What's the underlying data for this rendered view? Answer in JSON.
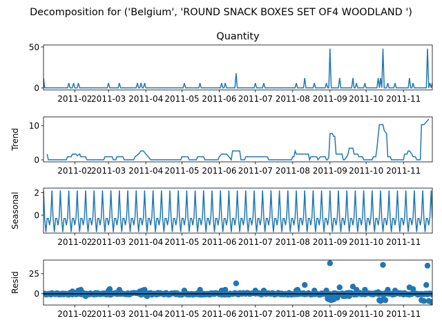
{
  "figure": {
    "suptitle": "Decomposition for ('Belgium', 'ROUND SNACK BOXES SET OF4 WOODLAND ')",
    "line_color": "#1f77b4"
  },
  "chart_data": [
    {
      "type": "line",
      "panel": "observed",
      "title": "Quantity",
      "ylabel": "",
      "x_range": [
        "2011-01-06",
        "2011-11-25"
      ],
      "ylim": [
        -2.5,
        52.5
      ],
      "yticks": [
        0,
        50
      ],
      "xtick_labels": [
        "2011-02",
        "2011-03",
        "2011-04",
        "2011-05",
        "2011-06",
        "2011-07",
        "2011-08",
        "2011-09",
        "2011-10",
        "2011-11"
      ],
      "xtick_dates": [
        "2011-02-01",
        "2011-03-01",
        "2011-04-01",
        "2011-05-01",
        "2011-06-01",
        "2011-07-01",
        "2011-08-01",
        "2011-09-01",
        "2011-10-01",
        "2011-11-01"
      ],
      "baseline": 0,
      "spikes": [
        [
          "2011-01-06",
          12
        ],
        [
          "2011-01-27",
          6
        ],
        [
          "2011-01-31",
          6
        ],
        [
          "2011-02-04",
          6
        ],
        [
          "2011-03-01",
          6
        ],
        [
          "2011-03-10",
          6
        ],
        [
          "2011-03-25",
          6
        ],
        [
          "2011-03-28",
          6
        ],
        [
          "2011-03-31",
          6
        ],
        [
          "2011-05-03",
          6
        ],
        [
          "2011-05-16",
          6
        ],
        [
          "2011-06-03",
          6
        ],
        [
          "2011-06-06",
          6
        ],
        [
          "2011-06-15",
          18
        ],
        [
          "2011-07-01",
          6
        ],
        [
          "2011-07-08",
          6
        ],
        [
          "2011-08-04",
          6
        ],
        [
          "2011-08-11",
          12
        ],
        [
          "2011-08-19",
          6
        ],
        [
          "2011-08-29",
          6
        ],
        [
          "2011-09-01",
          48
        ],
        [
          "2011-09-09",
          12
        ],
        [
          "2011-09-20",
          12
        ],
        [
          "2011-09-23",
          6
        ],
        [
          "2011-09-30",
          6
        ],
        [
          "2011-10-11",
          12
        ],
        [
          "2011-10-13",
          12
        ],
        [
          "2011-10-15",
          48
        ],
        [
          "2011-10-19",
          6
        ],
        [
          "2011-10-25",
          6
        ],
        [
          "2011-11-06",
          12
        ],
        [
          "2011-11-09",
          6
        ],
        [
          "2011-11-21",
          48
        ],
        [
          "2011-11-23",
          6
        ],
        [
          "2011-11-25",
          6
        ]
      ]
    },
    {
      "type": "line",
      "panel": "trend",
      "title": "",
      "ylabel": "Trend",
      "x_range": [
        "2011-01-06",
        "2011-11-25"
      ],
      "ylim": [
        -0.6,
        12.6
      ],
      "yticks": [
        0,
        10
      ],
      "xtick_labels": [
        "2011-02",
        "2011-03",
        "2011-04",
        "2011-05",
        "2011-06",
        "2011-07",
        "2011-08",
        "2011-09",
        "2011-10",
        "2011-11"
      ],
      "xtick_dates": [
        "2011-02-01",
        "2011-03-01",
        "2011-04-01",
        "2011-05-01",
        "2011-06-01",
        "2011-07-01",
        "2011-08-01",
        "2011-09-01",
        "2011-10-01",
        "2011-11-01"
      ],
      "points": [
        [
          "2011-01-09",
          1.7
        ],
        [
          "2011-01-10",
          0
        ],
        [
          "2011-01-25",
          0
        ],
        [
          "2011-01-26",
          0.9
        ],
        [
          "2011-01-29",
          0.9
        ],
        [
          "2011-01-30",
          1.7
        ],
        [
          "2011-02-02",
          1.7
        ],
        [
          "2011-02-03",
          1.2
        ],
        [
          "2011-02-05",
          1.7
        ],
        [
          "2011-02-06",
          0.9
        ],
        [
          "2011-02-10",
          0.9
        ],
        [
          "2011-02-11",
          0
        ],
        [
          "2011-02-25",
          0
        ],
        [
          "2011-02-26",
          0.9
        ],
        [
          "2011-03-04",
          0.9
        ],
        [
          "2011-03-05",
          0
        ],
        [
          "2011-03-07",
          0
        ],
        [
          "2011-03-08",
          0.9
        ],
        [
          "2011-03-13",
          0.9
        ],
        [
          "2011-03-14",
          0
        ],
        [
          "2011-03-22",
          0
        ],
        [
          "2011-03-23",
          0.9
        ],
        [
          "2011-03-26",
          1.7
        ],
        [
          "2011-03-28",
          2.6
        ],
        [
          "2011-03-30",
          2.6
        ],
        [
          "2011-04-01",
          1.7
        ],
        [
          "2011-04-03",
          0.9
        ],
        [
          "2011-04-05",
          0
        ],
        [
          "2011-04-30",
          0
        ],
        [
          "2011-05-01",
          0.9
        ],
        [
          "2011-05-06",
          0.9
        ],
        [
          "2011-05-07",
          0
        ],
        [
          "2011-05-13",
          0
        ],
        [
          "2011-05-14",
          0.9
        ],
        [
          "2011-05-19",
          0.9
        ],
        [
          "2011-05-20",
          0
        ],
        [
          "2011-05-31",
          0
        ],
        [
          "2011-06-01",
          0.9
        ],
        [
          "2011-06-03",
          1.7
        ],
        [
          "2011-06-07",
          1.7
        ],
        [
          "2011-06-09",
          0.9
        ],
        [
          "2011-06-11",
          0
        ],
        [
          "2011-06-12",
          2.6
        ],
        [
          "2011-06-18",
          2.6
        ],
        [
          "2011-06-19",
          0
        ],
        [
          "2011-06-22",
          0
        ],
        [
          "2011-06-23",
          0.9
        ],
        [
          "2011-07-04",
          0.9
        ],
        [
          "2011-07-05",
          0.9
        ],
        [
          "2011-07-11",
          0.9
        ],
        [
          "2011-07-12",
          0
        ],
        [
          "2011-07-31",
          0
        ],
        [
          "2011-08-01",
          0.9
        ],
        [
          "2011-08-02",
          0.9
        ],
        [
          "2011-08-03",
          2.6
        ],
        [
          "2011-08-04",
          1.7
        ],
        [
          "2011-08-08",
          1.7
        ],
        [
          "2011-08-09",
          1.7
        ],
        [
          "2011-08-14",
          1.7
        ],
        [
          "2011-08-15",
          0
        ],
        [
          "2011-08-16",
          0.9
        ],
        [
          "2011-08-21",
          0.9
        ],
        [
          "2011-08-22",
          0
        ],
        [
          "2011-08-24",
          0.9
        ],
        [
          "2011-08-28",
          0.9
        ],
        [
          "2011-08-29",
          0
        ],
        [
          "2011-08-30",
          0
        ],
        [
          "2011-08-31",
          0.9
        ],
        [
          "2011-09-01",
          7.7
        ],
        [
          "2011-09-03",
          7.7
        ],
        [
          "2011-09-04",
          6.9
        ],
        [
          "2011-09-05",
          6.9
        ],
        [
          "2011-09-06",
          1.7
        ],
        [
          "2011-09-11",
          1.7
        ],
        [
          "2011-09-12",
          0
        ],
        [
          "2011-09-13",
          0
        ],
        [
          "2011-09-15",
          0.9
        ],
        [
          "2011-09-16",
          1.7
        ],
        [
          "2011-09-17",
          3.4
        ],
        [
          "2011-09-19",
          3.4
        ],
        [
          "2011-09-20",
          3.4
        ],
        [
          "2011-09-21",
          1.7
        ],
        [
          "2011-09-24",
          1.7
        ],
        [
          "2011-09-25",
          0.9
        ],
        [
          "2011-09-28",
          0.9
        ],
        [
          "2011-09-29",
          0
        ],
        [
          "2011-10-06",
          0
        ],
        [
          "2011-10-07",
          0.9
        ],
        [
          "2011-10-09",
          0.9
        ],
        [
          "2011-10-10",
          3.4
        ],
        [
          "2011-10-12",
          10.3
        ],
        [
          "2011-10-15",
          10.3
        ],
        [
          "2011-10-16",
          8.6
        ],
        [
          "2011-10-18",
          7.7
        ],
        [
          "2011-10-19",
          0.9
        ],
        [
          "2011-10-21",
          0.9
        ],
        [
          "2011-10-22",
          0
        ],
        [
          "2011-11-01",
          0
        ],
        [
          "2011-11-02",
          1.7
        ],
        [
          "2011-11-04",
          1.7
        ],
        [
          "2011-11-05",
          2.6
        ],
        [
          "2011-11-06",
          2.6
        ],
        [
          "2011-11-08",
          1.7
        ],
        [
          "2011-11-09",
          0.9
        ],
        [
          "2011-11-11",
          0.9
        ],
        [
          "2011-11-12",
          0
        ],
        [
          "2011-11-15",
          0
        ],
        [
          "2011-11-16",
          10.3
        ],
        [
          "2011-11-18",
          10.3
        ],
        [
          "2011-11-20",
          11.1
        ],
        [
          "2011-11-22",
          12.0
        ]
      ]
    },
    {
      "type": "line",
      "panel": "seasonal",
      "title": "",
      "ylabel": "Seasonal",
      "x_range": [
        "2011-01-06",
        "2011-11-25"
      ],
      "ylim": [
        -1.6,
        2.4
      ],
      "yticks": [
        0,
        2
      ],
      "xtick_labels": [
        "2011-02",
        "2011-03",
        "2011-04",
        "2011-05",
        "2011-06",
        "2011-07",
        "2011-08",
        "2011-09",
        "2011-10",
        "2011-11"
      ],
      "xtick_dates": [
        "2011-02-01",
        "2011-03-01",
        "2011-04-01",
        "2011-05-01",
        "2011-06-01",
        "2011-07-01",
        "2011-08-01",
        "2011-09-01",
        "2011-10-01",
        "2011-11-01"
      ],
      "period_days": 7,
      "first_date": "2011-01-06",
      "pattern": [
        2.2,
        -0.3,
        -1.5,
        -0.3,
        -0.3,
        -0.9,
        -0.2
      ]
    },
    {
      "type": "scatter",
      "panel": "resid",
      "title": "",
      "ylabel": "Resid",
      "x_range": [
        "2011-01-06",
        "2011-11-25"
      ],
      "ylim": [
        -14,
        42
      ],
      "yticks": [
        0,
        25
      ],
      "hline": 0,
      "xtick_labels": [
        "2011-02",
        "2011-03",
        "2011-04",
        "2011-05",
        "2011-06",
        "2011-07",
        "2011-08",
        "2011-09",
        "2011-10",
        "2011-11"
      ],
      "xtick_dates": [
        "2011-02-01",
        "2011-03-01",
        "2011-04-01",
        "2011-05-01",
        "2011-06-01",
        "2011-07-01",
        "2011-08-01",
        "2011-09-01",
        "2011-10-01",
        "2011-11-01"
      ],
      "points": [
        [
          "2011-01-30",
          3
        ],
        [
          "2011-02-04",
          4
        ],
        [
          "2011-02-06",
          5
        ],
        [
          "2011-02-10",
          -3
        ],
        [
          "2011-03-01",
          4
        ],
        [
          "2011-03-02",
          6
        ],
        [
          "2011-03-10",
          5
        ],
        [
          "2011-03-27",
          3
        ],
        [
          "2011-03-29",
          4
        ],
        [
          "2011-03-31",
          5
        ],
        [
          "2011-04-02",
          -3
        ],
        [
          "2011-05-03",
          4
        ],
        [
          "2011-05-16",
          5
        ],
        [
          "2011-06-03",
          4
        ],
        [
          "2011-06-06",
          5
        ],
        [
          "2011-06-15",
          13
        ],
        [
          "2011-07-01",
          4
        ],
        [
          "2011-07-08",
          4
        ],
        [
          "2011-08-04",
          4
        ],
        [
          "2011-08-05",
          5
        ],
        [
          "2011-08-11",
          11
        ],
        [
          "2011-08-19",
          4
        ],
        [
          "2011-08-29",
          4
        ],
        [
          "2011-08-30",
          -6
        ],
        [
          "2011-08-31",
          -7
        ],
        [
          "2011-09-01",
          38
        ],
        [
          "2011-09-02",
          -8
        ],
        [
          "2011-09-03",
          -6
        ],
        [
          "2011-09-04",
          -7
        ],
        [
          "2011-09-05",
          -5
        ],
        [
          "2011-09-07",
          -5
        ],
        [
          "2011-09-09",
          8
        ],
        [
          "2011-09-12",
          -3
        ],
        [
          "2011-09-14",
          -3
        ],
        [
          "2011-09-17",
          -3
        ],
        [
          "2011-09-20",
          9
        ],
        [
          "2011-09-23",
          5
        ],
        [
          "2011-09-30",
          5
        ],
        [
          "2011-10-11",
          2
        ],
        [
          "2011-10-12",
          -8
        ],
        [
          "2011-10-13",
          -9
        ],
        [
          "2011-10-14",
          -8
        ],
        [
          "2011-10-15",
          36
        ],
        [
          "2011-10-16",
          -7
        ],
        [
          "2011-10-17",
          -8
        ],
        [
          "2011-10-19",
          5
        ],
        [
          "2011-10-25",
          4
        ],
        [
          "2011-11-06",
          8
        ],
        [
          "2011-11-09",
          6
        ],
        [
          "2011-11-16",
          -8
        ],
        [
          "2011-11-18",
          -9
        ],
        [
          "2011-11-20",
          11
        ],
        [
          "2011-11-21",
          35
        ],
        [
          "2011-11-22",
          -9
        ],
        [
          "2011-11-24",
          -10
        ]
      ]
    }
  ]
}
